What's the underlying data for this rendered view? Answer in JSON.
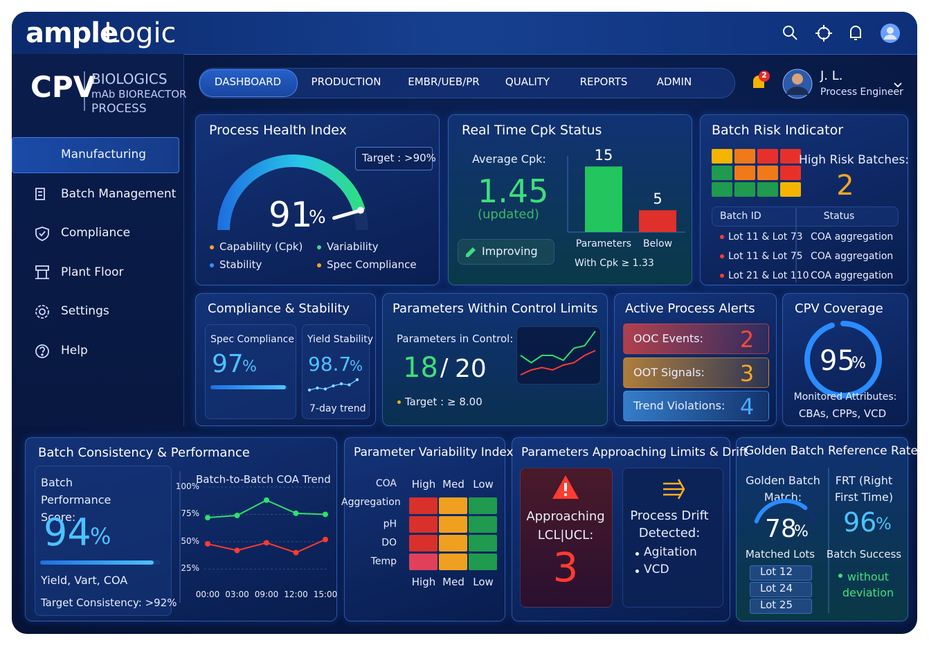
{
  "header": {
    "brand_bold": "ample",
    "brand_light": "Logic"
  },
  "sidebar": {
    "logo": "CPV",
    "product_lines": [
      "BIOLOGICS",
      "mAb BIOREACTOR",
      "PROCESS"
    ],
    "menu": [
      "Manufacturing",
      "Batch Management",
      "Compliance",
      "Plant Floor",
      "Settings",
      "Help"
    ],
    "active": 0
  },
  "nav": {
    "tabs": [
      "DASHBOARD",
      "PRODUCTION",
      "EMBR/UEB/PR",
      "QUALITY",
      "REPORTS",
      "ADMIN"
    ],
    "active": 0
  },
  "user": {
    "notifications": 2,
    "name": "J. L.",
    "role": "Process Engineer"
  },
  "process_health": {
    "title": "Process Health Index",
    "target": "Target : >90%",
    "value": 91,
    "unit": "%",
    "range": [
      0,
      100
    ],
    "legend": [
      {
        "label": "Capability (Cpk)",
        "color": "#f5a623"
      },
      {
        "label": "Variability",
        "color": "#3ddc84"
      },
      {
        "label": "Stability",
        "color": "#3b8cff"
      },
      {
        "label": "Spec Compliance",
        "color": "#f5a623"
      }
    ]
  },
  "cpk": {
    "title": "Real Time Cpk Status",
    "average_label": "Average Cpk:",
    "average": 1.45,
    "note": "(updated)",
    "trend": "Improving",
    "chart": {
      "type": "bar",
      "categories": [
        "Parameters",
        "Below"
      ],
      "values": [
        15,
        5
      ],
      "colors": [
        "#22c55e",
        "#e0302b"
      ],
      "ylim": [
        0,
        16
      ],
      "footnote": "With Cpk ≥ 1.33"
    }
  },
  "batch_risk": {
    "title": "Batch Risk Indicator",
    "high_risk_label": "High Risk Batches:",
    "high_risk": 2,
    "risk_grid": [
      [
        "#f4b400",
        "#f07a1a",
        "#e8302a",
        "#e8302a"
      ],
      [
        "#1f9a4e",
        "#f07a1a",
        "#f07a1a",
        "#e8302a"
      ],
      [
        "#1f9a4e",
        "#1f9a4e",
        "#1f9a4e",
        "#f4b400"
      ]
    ],
    "table": {
      "columns": [
        "Batch ID",
        "Status"
      ],
      "rows": [
        [
          "Lot 11 & Lot 73",
          "COA aggregation"
        ],
        [
          "Lot 11 & Lot 75",
          "COA aggregation"
        ],
        [
          "Lot 21 & Lot 110",
          "COA aggregation"
        ]
      ]
    }
  },
  "compliance": {
    "title": "Compliance & Stability",
    "spec_label": "Spec Compliance",
    "spec": 97,
    "unit": "%",
    "range": [
      0,
      100
    ],
    "yield_label": "Yield Stability",
    "yield": 98.7,
    "trend_label": "7-day trend",
    "trend": [
      3,
      4,
      3.5,
      5,
      6,
      5.5,
      8
    ],
    "trend_ylim": [
      0,
      10
    ]
  },
  "params_control": {
    "title": "Parameters Within Control Limits",
    "label": "Parameters in Control:",
    "in_control": 18,
    "separator": "/",
    "total": 20,
    "target": "Target : ≥ 8.00",
    "chart": {
      "type": "line",
      "ylim": [
        0,
        10
      ],
      "series": [
        {
          "color": "#2ee06a",
          "values": [
            5,
            3.5,
            5,
            5,
            4,
            6.5,
            7,
            10
          ]
        },
        {
          "color": "#ff3b30",
          "values": [
            1,
            2,
            2.5,
            2,
            3,
            3.5,
            5,
            6
          ]
        }
      ]
    }
  },
  "alerts": {
    "title": "Active Process Alerts",
    "items": [
      {
        "label": "OOC Events:",
        "value": 2,
        "color": "#ff4a3d"
      },
      {
        "label": "OOT Signals:",
        "value": 3,
        "color": "#ffa726"
      },
      {
        "label": "Trend Violations:",
        "value": 4,
        "color": "#4aa8ff"
      }
    ]
  },
  "coverage": {
    "title": "CPV Coverage",
    "value": 95,
    "unit": "%",
    "range": [
      0,
      100
    ],
    "label": "Monitored Attributes:",
    "attributes": "CBAs, CPPs, VCD"
  },
  "batch_consistency": {
    "title": "Batch Consistency & Performance",
    "score_label": "Batch Performance Score:",
    "score": 94,
    "unit": "%",
    "range": [
      0,
      100
    ],
    "subtitle": "Yield, Vart, COA",
    "target": "Target Consistency: >92%",
    "chart": {
      "type": "line",
      "title": "Batch-to-Batch COA Trend",
      "categories": [
        "00:00",
        "03:00",
        "09:00",
        "12:00",
        "15:00"
      ],
      "series": [
        {
          "color": "#2ee06a",
          "values": [
            72,
            74,
            88,
            76,
            75
          ]
        },
        {
          "color": "#ff3b30",
          "values": [
            48,
            42,
            49,
            40,
            52
          ]
        }
      ],
      "ylim": [
        10,
        100
      ],
      "yticks": [
        {
          "value": 100,
          "label": "100%"
        },
        {
          "value": 75,
          "label": "75%"
        },
        {
          "value": 50,
          "label": "50%"
        },
        {
          "value": 25,
          "label": "25%"
        }
      ]
    }
  },
  "variability": {
    "title": "Parameter Variability Index",
    "columns": [
      "High",
      "Med",
      "Low"
    ],
    "rows": [
      "COA Aggregation",
      "pH",
      "DO",
      "Temp"
    ],
    "colors": [
      [
        "#d9302b",
        "#f0a020",
        "#1f9a4e"
      ],
      [
        "#d9302b",
        "#f0a020",
        "#1f9a4e"
      ],
      [
        "#d9302b",
        "#f0a020",
        "#1f9a4e"
      ],
      [
        "#e0405a",
        "#f0a020",
        "#1f9a4e"
      ]
    ]
  },
  "drift": {
    "title": "Parameters Approaching Limits & Drift",
    "approaching_label": "Approaching LCL|UCL:",
    "approaching": 3,
    "drift_label": "Process Drift Detected:",
    "items": [
      "Agitation",
      "VCD"
    ]
  },
  "golden": {
    "title": "Golden Batch Reference Rate",
    "match_label": "Golden Batch Match:",
    "match": 78,
    "unit": "%",
    "range": [
      0,
      100
    ],
    "lots_label": "Matched Lots",
    "lots": [
      "Lot 12",
      "Lot 24",
      "Lot 25"
    ],
    "frt_label": "FRT (Right First Time)",
    "frt": 96,
    "success_label": "Batch Success",
    "success_note": "without deviation"
  }
}
